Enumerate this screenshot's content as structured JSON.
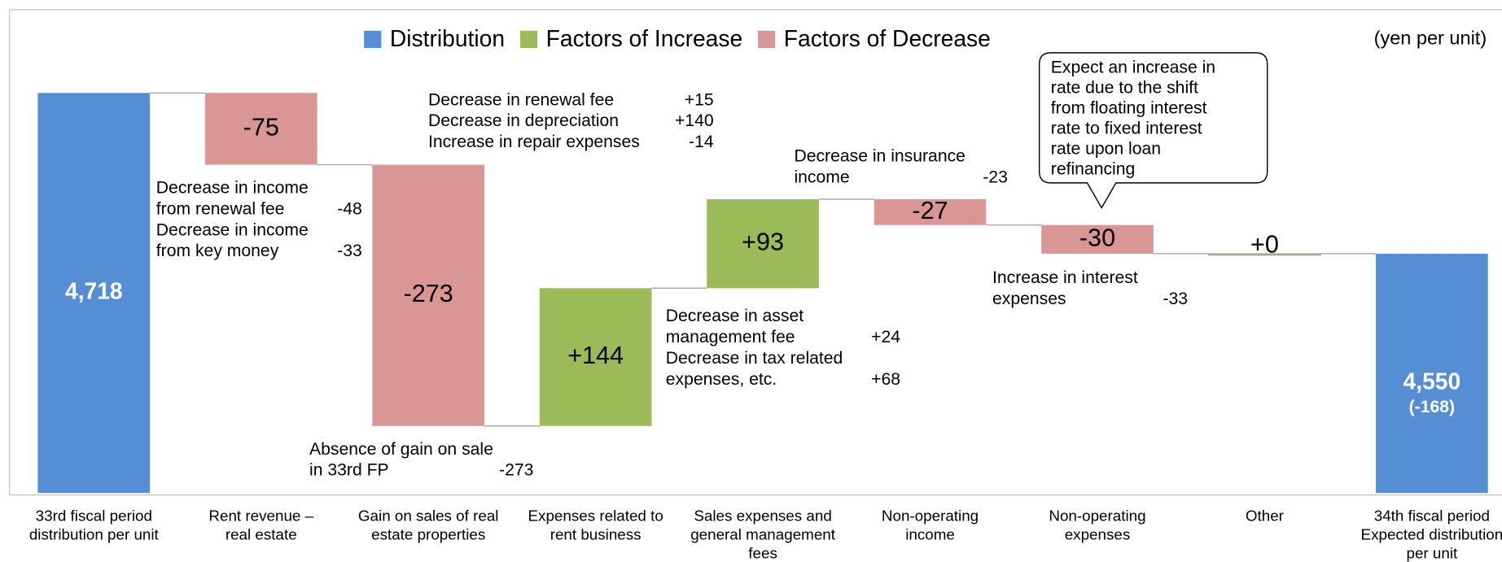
{
  "chart_data": {
    "type": "waterfall",
    "unit_label": "(yen per unit)",
    "legend": [
      {
        "name": "Distribution",
        "color": "#558ed5"
      },
      {
        "name": "Factors of Increase",
        "color": "#9bbb59"
      },
      {
        "name": "Factors of Decrease",
        "color": "#d99694"
      }
    ],
    "categories": [
      [
        "33rd fiscal period",
        "distribution per unit"
      ],
      [
        "Rent revenue –",
        "real estate"
      ],
      [
        "Gain on sales of real",
        "estate properties"
      ],
      [
        "Expenses related to",
        "rent business"
      ],
      [
        "Sales expenses and",
        "general management",
        "fees"
      ],
      [
        "Non-operating",
        "income"
      ],
      [
        "Non-operating",
        "expenses"
      ],
      [
        "Other"
      ],
      [
        "34th fiscal period",
        "Expected distribution",
        "per unit"
      ]
    ],
    "measures": [
      "total",
      "relative",
      "relative",
      "relative",
      "relative",
      "relative",
      "relative",
      "relative",
      "total"
    ],
    "values": [
      4718,
      -75,
      -273,
      144,
      93,
      -27,
      -30,
      0,
      4550
    ],
    "value_labels": [
      "4,718",
      "-75",
      "-273",
      "+144",
      "+93",
      "-27",
      "-30",
      "+0",
      "4,550"
    ],
    "total_change": -168,
    "total_change_label": "(-168)",
    "ylim": [
      4300,
      4800
    ],
    "annotations": [
      [
        {
          "text": "Decrease in income"
        },
        {
          "text": "from renewal fee",
          "amount": "-48"
        },
        {
          "text": "Decrease in income"
        },
        {
          "text": "from key money",
          "amount": "-33"
        }
      ],
      [
        {
          "text": "Decrease in renewal fee",
          "amount": "+15"
        },
        {
          "text": "Decrease in depreciation",
          "amount": "+140"
        },
        {
          "text": "Increase in repair expenses",
          "amount": "-14"
        }
      ],
      [
        {
          "text": "Absence of gain on sale"
        },
        {
          "text": "in 33rd FP",
          "amount": "-273"
        }
      ],
      [
        {
          "text": "Decrease in asset"
        },
        {
          "text": "management fee",
          "amount": "+24"
        },
        {
          "text": "Decrease in tax related"
        },
        {
          "text": "expenses, etc.",
          "amount": "+68"
        }
      ],
      [
        {
          "text": "Decrease in insurance"
        },
        {
          "text": "income",
          "amount": "-23"
        }
      ],
      [
        {
          "text": "Increase in interest"
        },
        {
          "text": "expenses",
          "amount": "-33"
        }
      ]
    ],
    "callout": [
      "Expect an increase in",
      "rate due to the shift",
      "from floating interest",
      "rate to fixed interest",
      "rate upon loan",
      "refinancing"
    ]
  }
}
